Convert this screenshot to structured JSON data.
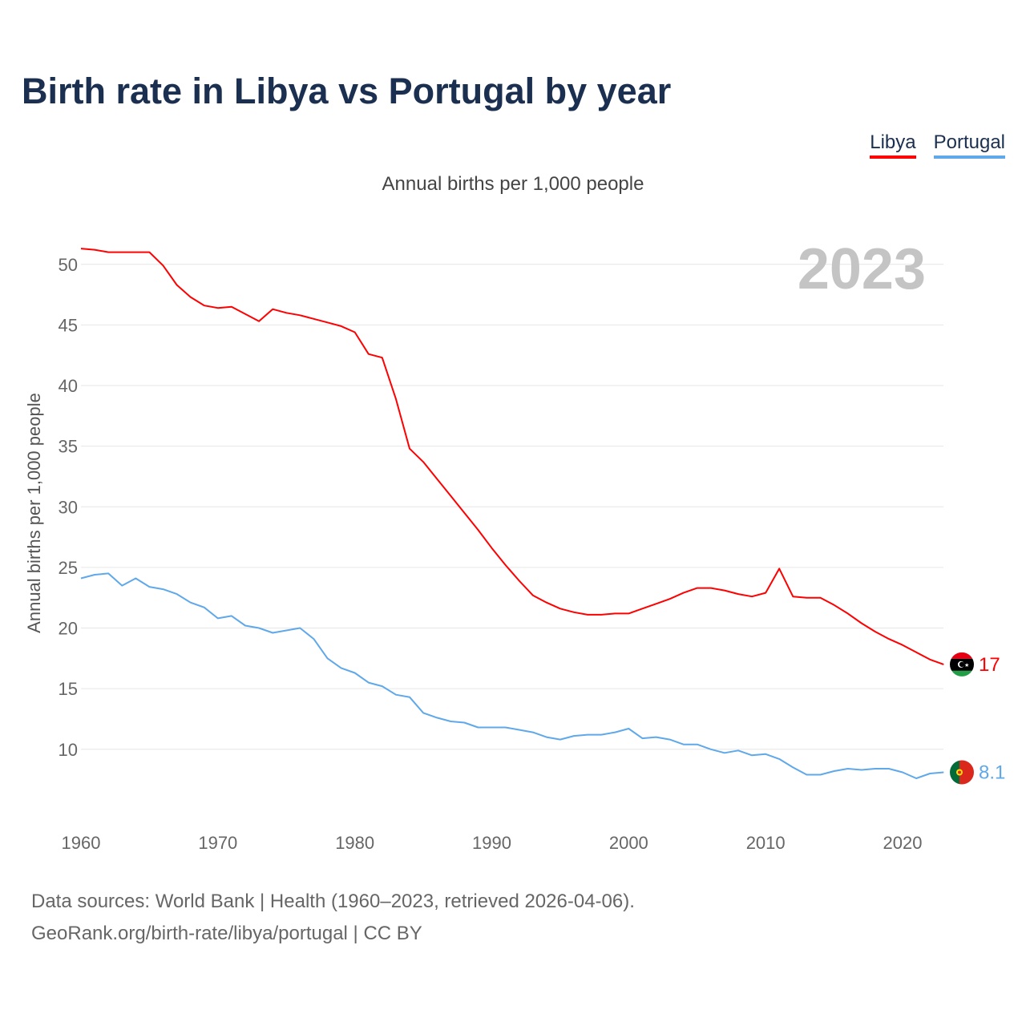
{
  "title": "Birth rate in Libya vs Portugal by year",
  "subtitle": "Annual births per 1,000 people",
  "year_label": "2023",
  "footer": {
    "line1": "Data sources: World Bank | Health (1960–2023, retrieved 2026-04-06).",
    "line2": "GeoRank.org/birth-rate/libya/portugal | CC BY"
  },
  "chart_data": {
    "type": "line",
    "title": "Birth rate in Libya vs Portugal by year",
    "xlabel": "",
    "ylabel": "Annual births per 1,000 people",
    "xlim": [
      1960,
      2023
    ],
    "ylim": [
      5,
      52
    ],
    "grid": true,
    "legend_position": "top-right",
    "x_ticks": [
      1960,
      1970,
      1980,
      1990,
      2000,
      2010,
      2020
    ],
    "y_ticks": [
      10,
      15,
      20,
      25,
      30,
      35,
      40,
      45,
      50
    ],
    "x": [
      1960,
      1961,
      1962,
      1963,
      1964,
      1965,
      1966,
      1967,
      1968,
      1969,
      1970,
      1971,
      1972,
      1973,
      1974,
      1975,
      1976,
      1977,
      1978,
      1979,
      1980,
      1981,
      1982,
      1983,
      1984,
      1985,
      1986,
      1987,
      1988,
      1989,
      1990,
      1991,
      1992,
      1993,
      1994,
      1995,
      1996,
      1997,
      1998,
      1999,
      2000,
      2001,
      2002,
      2003,
      2004,
      2005,
      2006,
      2007,
      2008,
      2009,
      2010,
      2011,
      2012,
      2013,
      2014,
      2015,
      2016,
      2017,
      2018,
      2019,
      2020,
      2021,
      2022,
      2023
    ],
    "series": [
      {
        "name": "Libya",
        "color": "#ff0000",
        "end_label": "17",
        "values": [
          51.3,
          51.2,
          51.0,
          51.0,
          51.0,
          51.0,
          49.9,
          48.3,
          47.3,
          46.6,
          46.4,
          46.5,
          45.9,
          45.3,
          46.3,
          46.0,
          45.8,
          45.5,
          45.2,
          44.9,
          44.4,
          42.6,
          42.3,
          38.9,
          34.8,
          33.7,
          32.3,
          30.9,
          29.5,
          28.1,
          26.6,
          25.2,
          23.9,
          22.7,
          22.1,
          21.6,
          21.3,
          21.1,
          21.1,
          21.2,
          21.2,
          21.6,
          22.0,
          22.4,
          22.9,
          23.3,
          23.3,
          23.1,
          22.8,
          22.6,
          22.9,
          24.9,
          22.6,
          22.5,
          22.5,
          21.9,
          21.2,
          20.4,
          19.7,
          19.1,
          18.6,
          18.0,
          17.4,
          17.0
        ]
      },
      {
        "name": "Portugal",
        "color": "#5fa8ea",
        "end_label": "8.1",
        "values": [
          24.1,
          24.4,
          24.5,
          23.5,
          24.1,
          23.4,
          23.2,
          22.8,
          22.1,
          21.7,
          20.8,
          21.0,
          20.2,
          20.0,
          19.6,
          19.8,
          20.0,
          19.1,
          17.5,
          16.7,
          16.3,
          15.5,
          15.2,
          14.5,
          14.3,
          13.0,
          12.6,
          12.3,
          12.2,
          11.8,
          11.8,
          11.8,
          11.6,
          11.4,
          11.0,
          10.8,
          11.1,
          11.2,
          11.2,
          11.4,
          11.7,
          10.9,
          11.0,
          10.8,
          10.4,
          10.4,
          10.0,
          9.7,
          9.9,
          9.5,
          9.6,
          9.2,
          8.5,
          7.9,
          7.9,
          8.2,
          8.4,
          8.3,
          8.4,
          8.4,
          8.1,
          7.6,
          8.0,
          8.1
        ]
      }
    ]
  }
}
